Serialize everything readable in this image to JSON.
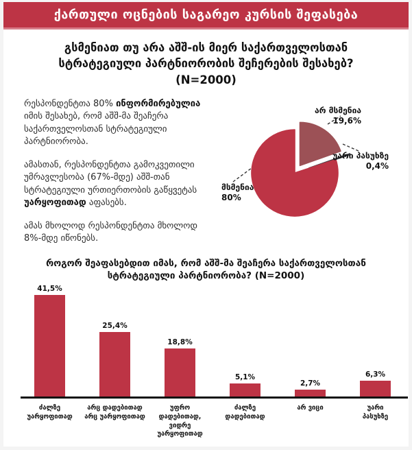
{
  "colors": {
    "accent": "#bd3445",
    "banner_border": "#d77c89",
    "frame_bg": "#f4f4f4",
    "muted_slice": "#9c5156",
    "dark_slice": "#3a3a40",
    "axis": "#111111"
  },
  "header": {
    "title": "ქართული ოცნების საგარეო კურსის შეფასება"
  },
  "question": {
    "text": "გსმენიათ თუ არა აშშ-ის მიერ საქართველოსთან\nსტრატეგიული პარტნიორობის შეჩერების შესახებ?\n(N=2000)"
  },
  "paragraphs": {
    "p1_pre": "რესპონდენტთა 80% ",
    "p1_bold": "ინფორმირებულია",
    "p1_post": " იმის შესახებ, რომ აშშ-მა შეაჩერა საქართველოსთან სტრატეგიული პარტნიორობა.",
    "p2_pre": "ამასთან, რესპონდენტთა გამოკვეთილი უმრავლესობა (67%-მდე) აშშ-თან სტრატეგიული ურთიერთობის გაწყვეტას ",
    "p2_bold": "უარყოფითად",
    "p2_post": " აფასებს.",
    "p3": "ამას მხოლოდ რესპონდენტთა მხოლოდ 8%-მდე იწონებს."
  },
  "chart_data": [
    {
      "type": "pie",
      "title": "გსმენიათ თუ არა აშშ-ის მიერ საქართველოსთან სტრატეგიული პარტნიორობის შეჩერების შესახებ? (N=2000)",
      "start_angle_deg": 0,
      "direction": "clockwise",
      "legend_position": "callout-labels",
      "slices": [
        {
          "label": "არ მსმენია",
          "value": 19.6,
          "display": "19,6%",
          "color": "#9c5156",
          "explode": 13
        },
        {
          "label": "უარი პასუხზე",
          "value": 0.4,
          "display": "0,4%",
          "color": "#3a3a40",
          "explode": 22
        },
        {
          "label": "მსმენია",
          "value": 80,
          "display": "80%",
          "color": "#bd3445",
          "explode": 0
        }
      ]
    },
    {
      "type": "bar",
      "title": "როგორ შეაფასებდით იმას, რომ აშშ-მა შეაჩერა საქართველოსთან\nსტრატეგიული პარტნიორობა? (N=2000)",
      "categories": [
        "ძალზე\nუარყოფითად",
        "არც დადებითად\nარც უარყოფითად",
        "უფრო დადებითად,\nვიდრე უარყოფითად",
        "ძალზე\nდადებითად",
        "არ ვიცი",
        "უარი\nპასუხზე"
      ],
      "values": [
        41.5,
        25.4,
        18.8,
        5.1,
        2.7,
        6.3
      ],
      "value_labels": [
        "41,5%",
        "25,4%",
        "18,8%",
        "5,1%",
        "2,7%",
        "6,3%"
      ],
      "bar_color": "#bd3445",
      "ylim": [
        0,
        45
      ],
      "grid": false,
      "xlabel": "",
      "ylabel": ""
    }
  ]
}
